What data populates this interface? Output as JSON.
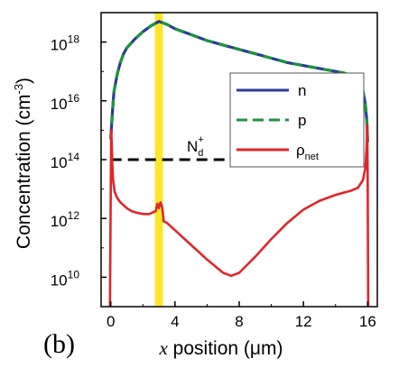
{
  "panel_label": "(b)",
  "chart_data": {
    "type": "line",
    "title": "",
    "xlabel_italic": "x",
    "xlabel_rest": " position (μm)",
    "ylabel": "Concentration (cm",
    "ylabel_sup": "-3",
    "ylabel_end": ")",
    "xlim": [
      -0.6,
      16.6
    ],
    "ylim_log10": [
      9.0,
      19.0
    ],
    "y_scale": "log",
    "x_ticks": [
      0,
      4,
      8,
      12,
      16
    ],
    "x_tick_labels": [
      "0",
      "4",
      "8",
      "12",
      "16"
    ],
    "y_ticks_log10": [
      10,
      12,
      14,
      16,
      18
    ],
    "y_tick_labels": [
      {
        "base": "10",
        "exp": "10"
      },
      {
        "base": "10",
        "exp": "12"
      },
      {
        "base": "10",
        "exp": "14"
      },
      {
        "base": "10",
        "exp": "16"
      },
      {
        "base": "10",
        "exp": "18"
      }
    ],
    "highlight_band_x": [
      2.75,
      3.25
    ],
    "colors": {
      "n": "#2b3a98",
      "p": "#1a9640",
      "rho": "#e0262a",
      "Nd": "#000000",
      "band": "#fbe72a"
    },
    "series": [
      {
        "name": "n",
        "style": "solid",
        "x": [
          0.0,
          0.1,
          0.2,
          0.4,
          0.6,
          0.8,
          1.0,
          1.5,
          2.0,
          2.5,
          3.0,
          3.5,
          4.0,
          5.0,
          6.0,
          7.0,
          8.0,
          9.0,
          10.0,
          11.0,
          12.0,
          13.0,
          14.0,
          14.5,
          15.0,
          15.3,
          15.5,
          15.7,
          15.85,
          15.95,
          16.0
        ],
        "log10_y": [
          14.7,
          15.6,
          16.3,
          16.9,
          17.3,
          17.6,
          17.8,
          18.1,
          18.35,
          18.55,
          18.7,
          18.6,
          18.45,
          18.25,
          18.05,
          17.9,
          17.75,
          17.6,
          17.45,
          17.3,
          17.2,
          17.1,
          17.0,
          16.95,
          16.85,
          16.75,
          16.6,
          16.35,
          15.9,
          15.3,
          14.6
        ]
      },
      {
        "name": "p",
        "style": "dashed",
        "x": [
          0.0,
          0.1,
          0.2,
          0.4,
          0.6,
          0.8,
          1.0,
          1.5,
          2.0,
          2.5,
          3.0,
          3.5,
          4.0,
          5.0,
          6.0,
          7.0,
          8.0,
          9.0,
          10.0,
          11.0,
          12.0,
          13.0,
          14.0,
          14.5,
          15.0,
          15.3,
          15.5,
          15.7,
          15.85,
          15.95,
          16.0
        ],
        "log10_y": [
          14.7,
          15.6,
          16.3,
          16.9,
          17.3,
          17.6,
          17.8,
          18.1,
          18.35,
          18.55,
          18.7,
          18.6,
          18.45,
          18.25,
          18.05,
          17.9,
          17.75,
          17.6,
          17.45,
          17.3,
          17.2,
          17.1,
          17.0,
          16.95,
          16.85,
          16.75,
          16.6,
          16.35,
          15.9,
          15.3,
          14.6
        ]
      },
      {
        "name": "ρ",
        "name_sub": "net",
        "style": "solid",
        "x": [
          -0.05,
          0.0,
          0.03,
          0.06,
          0.1,
          0.15,
          0.25,
          0.4,
          0.6,
          0.8,
          1.0,
          1.3,
          1.6,
          2.0,
          2.4,
          2.8,
          2.9,
          3.0,
          3.1,
          3.2,
          3.3,
          3.5,
          4.0,
          5.0,
          6.0,
          7.0,
          7.5,
          8.0,
          9.0,
          10.0,
          11.0,
          12.0,
          13.0,
          14.0,
          15.0,
          15.4,
          15.7,
          15.85,
          15.93,
          15.97,
          16.0,
          16.03
        ],
        "log10_y": [
          9.0,
          13.0,
          15.0,
          14.6,
          13.8,
          13.3,
          12.9,
          12.7,
          12.55,
          12.45,
          12.35,
          12.25,
          12.2,
          12.15,
          12.15,
          12.25,
          12.5,
          12.35,
          12.55,
          12.4,
          11.9,
          11.85,
          11.6,
          11.1,
          10.6,
          10.15,
          10.05,
          10.15,
          10.7,
          11.3,
          11.85,
          12.3,
          12.6,
          12.8,
          12.95,
          13.05,
          13.3,
          13.7,
          14.4,
          15.2,
          13.5,
          9.0
        ]
      },
      {
        "name": "N",
        "name_sub": "d",
        "name_sup": "+",
        "style": "dashed",
        "x": [
          0.0,
          16.0
        ],
        "log10_y": [
          14.0,
          14.0
        ]
      }
    ],
    "legend": {
      "placement": "right",
      "entries": [
        {
          "label": "n",
          "series": "n"
        },
        {
          "label": "p",
          "series": "p"
        },
        {
          "label": "ρ",
          "label_sub": "net",
          "series": "ρ"
        }
      ]
    },
    "annotation": {
      "base": "N",
      "sub": "d",
      "sup": "+"
    },
    "grid": false
  }
}
